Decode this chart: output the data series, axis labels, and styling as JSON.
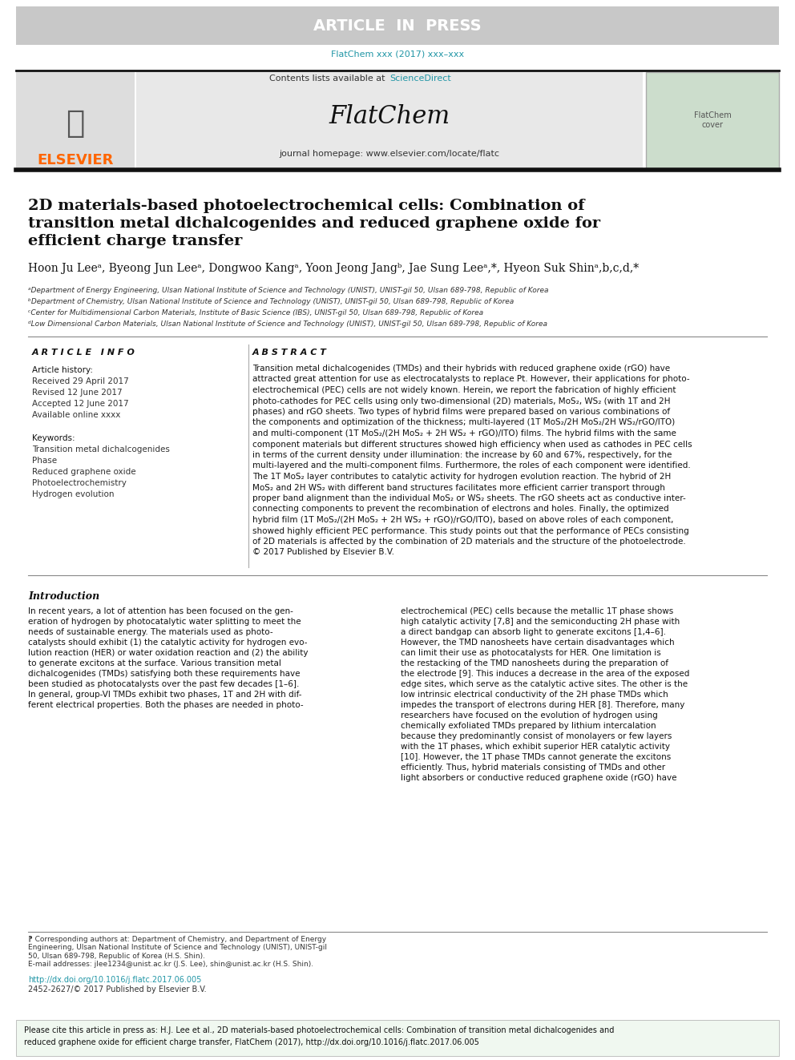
{
  "article_in_press_text": "ARTICLE  IN  PRESS",
  "article_in_press_bg": "#c8c8c8",
  "article_in_press_fg": "#ffffff",
  "journal_ref": "FlatChem xxx (2017) xxx–xxx",
  "journal_ref_color": "#2196A6",
  "sciencedirect_color": "#2196A6",
  "journal_name": "FlatChem",
  "journal_homepage": "journal homepage: www.elsevier.com/locate/flatc",
  "elsevier_color": "#FF6600",
  "header_bg": "#e8e8e8",
  "affil_a": "ᵃDepartment of Energy Engineering, Ulsan National Institute of Science and Technology (UNIST), UNIST-gil 50, Ulsan 689-798, Republic of Korea",
  "affil_b": "ᵇDepartment of Chemistry, Ulsan National Institute of Science and Technology (UNIST), UNIST-gil 50, Ulsan 689-798, Republic of Korea",
  "affil_c": "ᶜCenter for Multidimensional Carbon Materials, Institute of Basic Science (IBS), UNIST-gil 50, Ulsan 689-798, Republic of Korea",
  "affil_d": "ᵈLow Dimensional Carbon Materials, Ulsan National Institute of Science and Technology (UNIST), UNIST-gil 50, Ulsan 689-798, Republic of Korea",
  "article_info_title": "A R T I C L E   I N F O",
  "article_history_title": "Article history:",
  "received": "Received 29 April 2017",
  "revised": "Revised 12 June 2017",
  "accepted": "Accepted 12 June 2017",
  "available": "Available online xxxx",
  "keywords_title": "Keywords:",
  "keyword1": "Transition metal dichalcogenides",
  "keyword2": "Phase",
  "keyword3": "Reduced graphene oxide",
  "keyword4": "Photoelectrochemistry",
  "keyword5": "Hydrogen evolution",
  "abstract_title": "A B S T R A C T",
  "abstract_text": "Transition metal dichalcogenides (TMDs) and their hybrids with reduced graphene oxide (rGO) have\nattracted great attention for use as electrocatalysts to replace Pt. However, their applications for photo-\nelectrochemical (PEC) cells are not widely known. Herein, we report the fabrication of highly efficient\nphoto-cathodes for PEC cells using only two-dimensional (2D) materials, MoS₂, WS₂ (with 1T and 2H\nphases) and rGO sheets. Two types of hybrid films were prepared based on various combinations of\nthe components and optimization of the thickness; multi-layered (1T MoS₂/2H MoS₂/2H WS₂/rGO/ITO)\nand multi-component (1T MoS₂/(2H MoS₂ + 2H WS₂ + rGO)/ITO) films. The hybrid films with the same\ncomponent materials but different structures showed high efficiency when used as cathodes in PEC cells\nin terms of the current density under illumination: the increase by 60 and 67%, respectively, for the\nmulti-layered and the multi-component films. Furthermore, the roles of each component were identified.\nThe 1T MoS₂ layer contributes to catalytic activity for hydrogen evolution reaction. The hybrid of 2H\nMoS₂ and 2H WS₂ with different band structures facilitates more efficient carrier transport through\nproper band alignment than the individual MoS₂ or WS₂ sheets. The rGO sheets act as conductive inter-\nconnecting components to prevent the recombination of electrons and holes. Finally, the optimized\nhybrid film (1T MoS₂/(2H MoS₂ + 2H WS₂ + rGO)/rGO/ITO), based on above roles of each component,\nshowed highly efficient PEC performance. This study points out that the performance of PECs consisting\nof 2D materials is affected by the combination of 2D materials and the structure of the photoelectrode.\n© 2017 Published by Elsevier B.V.",
  "intro_title": "Introduction",
  "intro_text_left": "In recent years, a lot of attention has been focused on the gen-\neration of hydrogen by photocatalytic water splitting to meet the\nneeds of sustainable energy. The materials used as photo-\ncatalysts should exhibit (1) the catalytic activity for hydrogen evo-\nlution reaction (HER) or water oxidation reaction and (2) the ability\nto generate excitons at the surface. Various transition metal\ndichalcogenides (TMDs) satisfying both these requirements have\nbeen studied as photocatalysts over the past few decades [1–6].\nIn general, group-VI TMDs exhibit two phases, 1T and 2H with dif-\nferent electrical properties. Both the phases are needed in photo-",
  "intro_text_right": "electrochemical (PEC) cells because the metallic 1T phase shows\nhigh catalytic activity [7,8] and the semiconducting 2H phase with\na direct bandgap can absorb light to generate excitons [1,4–6].\nHowever, the TMD nanosheets have certain disadvantages which\ncan limit their use as photocatalysts for HER. One limitation is\nthe restacking of the TMD nanosheets during the preparation of\nthe electrode [9]. This induces a decrease in the area of the exposed\nedge sites, which serve as the catalytic active sites. The other is the\nlow intrinsic electrical conductivity of the 2H phase TMDs which\nimpedes the transport of electrons during HER [8]. Therefore, many\nresearchers have focused on the evolution of hydrogen using\nchemically exfoliated TMDs prepared by lithium intercalation\nbecause they predominantly consist of monolayers or few layers\nwith the 1T phases, which exhibit superior HER catalytic activity\n[10]. However, the 1T phase TMDs cannot generate the excitons\nefficiently. Thus, hybrid materials consisting of TMDs and other\nlight absorbers or conductive reduced graphene oxide (rGO) have",
  "footnote_star": "⁋ Corresponding authors at: Department of Chemistry, and Department of Energy\nEngineering, Ulsan National Institute of Science and Technology (UNIST), UNIST-gil\n50, Ulsan 689-798, Republic of Korea (H.S. Shin).\nE-mail addresses: jlee1234@unist.ac.kr (J.S. Lee), shin@unist.ac.kr (H.S. Shin).",
  "doi_text": "http://dx.doi.org/10.1016/j.flatc.2017.06.005",
  "doi_color": "#2196A6",
  "issn_text": "2452-2627/© 2017 Published by Elsevier B.V.",
  "citation_text": "Please cite this article in press as: H.J. Lee et al., 2D materials-based photoelectrochemical cells: Combination of transition metal dichalcogenides and\nreduced graphene oxide for efficient charge transfer, FlatChem (2017), http://dx.doi.org/10.1016/j.flatc.2017.06.005",
  "citation_doi_color": "#2196A6",
  "bg_color": "#ffffff",
  "text_color": "#000000"
}
